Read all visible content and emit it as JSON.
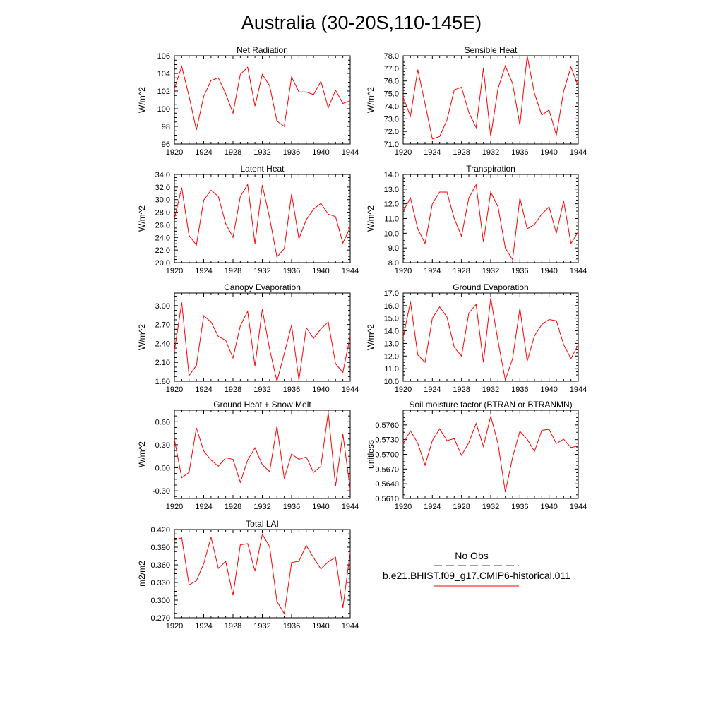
{
  "figure_title": "Australia (30-20S,110-145E)",
  "legend": {
    "obs_label": "No Obs",
    "obs_color": "#3b3b7a",
    "model_label": "b.e21.BHIST.f09_g17.CMIP6-historical.011",
    "model_color": "#ff0000"
  },
  "chart_data": [
    {
      "type": "line",
      "title": "Net Radiation",
      "ylabel": "W/m^2",
      "xlim": [
        1920,
        1944
      ],
      "ylim": [
        96,
        106
      ],
      "xticks": [
        1920,
        1924,
        1928,
        1932,
        1936,
        1940,
        1944
      ],
      "yticks": [
        96,
        98,
        100,
        102,
        104,
        106
      ],
      "ytick_labels": [
        "96",
        "98",
        "100",
        "102",
        "104",
        "106"
      ],
      "x": [
        1920,
        1921,
        1922,
        1923,
        1924,
        1925,
        1926,
        1927,
        1928,
        1929,
        1930,
        1931,
        1932,
        1933,
        1934,
        1935,
        1936,
        1937,
        1938,
        1939,
        1940,
        1941,
        1942,
        1943,
        1944
      ],
      "series": [
        {
          "values": [
            102.3,
            104.8,
            101.4,
            97.6,
            101.4,
            103.2,
            103.5,
            101.7,
            99.5,
            103.9,
            104.7,
            100.3,
            103.9,
            102.6,
            98.6,
            98.0,
            103.6,
            101.9,
            101.9,
            101.6,
            103.1,
            100.1,
            102.1,
            100.6,
            100.9
          ]
        }
      ]
    },
    {
      "type": "line",
      "title": "Sensible Heat",
      "ylabel": "W/m^2",
      "xlim": [
        1920,
        1944
      ],
      "ylim": [
        71.0,
        78.0
      ],
      "xticks": [
        1920,
        1924,
        1928,
        1932,
        1936,
        1940,
        1944
      ],
      "yticks": [
        71,
        72,
        73,
        74,
        75,
        76,
        77,
        78
      ],
      "ytick_labels": [
        "71.0",
        "72.0",
        "73.0",
        "74.0",
        "75.0",
        "76.0",
        "77.0",
        "78.0"
      ],
      "x": [
        1920,
        1921,
        1922,
        1923,
        1924,
        1925,
        1926,
        1927,
        1928,
        1929,
        1930,
        1931,
        1932,
        1933,
        1934,
        1935,
        1936,
        1937,
        1938,
        1939,
        1940,
        1941,
        1942,
        1943,
        1944
      ],
      "series": [
        {
          "values": [
            74.7,
            73.2,
            76.9,
            74.2,
            71.4,
            71.6,
            72.9,
            75.3,
            75.5,
            73.5,
            72.3,
            77.0,
            71.6,
            75.4,
            77.2,
            75.8,
            72.5,
            78.0,
            75.0,
            73.3,
            73.7,
            71.7,
            75.2,
            77.1,
            75.6
          ]
        }
      ]
    },
    {
      "type": "line",
      "title": "Latent Heat",
      "ylabel": "W/m^2",
      "xlim": [
        1920,
        1944
      ],
      "ylim": [
        20.0,
        34.0
      ],
      "xticks": [
        1920,
        1924,
        1928,
        1932,
        1936,
        1940,
        1944
      ],
      "yticks": [
        20,
        22,
        24,
        26,
        28,
        30,
        32,
        34
      ],
      "ytick_labels": [
        "20.0",
        "22.0",
        "24.0",
        "26.0",
        "28.0",
        "30.0",
        "32.0",
        "34.0"
      ],
      "x": [
        1920,
        1921,
        1922,
        1923,
        1924,
        1925,
        1926,
        1927,
        1928,
        1929,
        1930,
        1931,
        1932,
        1933,
        1934,
        1935,
        1936,
        1937,
        1938,
        1939,
        1940,
        1941,
        1942,
        1943,
        1944
      ],
      "series": [
        {
          "values": [
            27.0,
            31.9,
            24.3,
            22.8,
            29.9,
            31.5,
            30.5,
            26.2,
            24.0,
            30.5,
            32.4,
            23.0,
            32.3,
            27.1,
            20.9,
            22.2,
            30.9,
            23.8,
            26.8,
            28.5,
            29.4,
            27.7,
            27.3,
            23.1,
            25.6
          ]
        }
      ]
    },
    {
      "type": "line",
      "title": "Transpiration",
      "ylabel": "W/m^2",
      "xlim": [
        1920,
        1944
      ],
      "ylim": [
        8.0,
        14.0
      ],
      "xticks": [
        1920,
        1924,
        1928,
        1932,
        1936,
        1940,
        1944
      ],
      "yticks": [
        8,
        9,
        10,
        11,
        12,
        13,
        14
      ],
      "ytick_labels": [
        "8.0",
        "9.0",
        "10.0",
        "11.0",
        "12.0",
        "13.0",
        "14.0"
      ],
      "x": [
        1920,
        1921,
        1922,
        1923,
        1924,
        1925,
        1926,
        1927,
        1928,
        1929,
        1930,
        1931,
        1932,
        1933,
        1934,
        1935,
        1936,
        1937,
        1938,
        1939,
        1940,
        1941,
        1942,
        1943,
        1944
      ],
      "series": [
        {
          "values": [
            11.5,
            12.4,
            10.3,
            9.3,
            12.0,
            12.8,
            12.8,
            11.0,
            9.8,
            12.4,
            13.3,
            9.4,
            12.8,
            11.8,
            9.0,
            8.2,
            12.4,
            10.3,
            10.6,
            11.3,
            11.8,
            10.0,
            12.2,
            9.3,
            10.1
          ]
        }
      ]
    },
    {
      "type": "line",
      "title": "Canopy Evaporation",
      "ylabel": "W/m^2",
      "xlim": [
        1920,
        1944
      ],
      "ylim": [
        1.8,
        3.2
      ],
      "xticks": [
        1920,
        1924,
        1928,
        1932,
        1936,
        1940,
        1944
      ],
      "yticks": [
        1.8,
        2.1,
        2.4,
        2.7,
        3.0
      ],
      "ytick_labels": [
        "1.80",
        "2.10",
        "2.40",
        "2.70",
        "3.00"
      ],
      "x": [
        1920,
        1921,
        1922,
        1923,
        1924,
        1925,
        1926,
        1927,
        1928,
        1929,
        1930,
        1931,
        1932,
        1933,
        1934,
        1935,
        1936,
        1937,
        1938,
        1939,
        1940,
        1941,
        1942,
        1943,
        1944
      ],
      "series": [
        {
          "values": [
            2.28,
            3.05,
            1.89,
            2.05,
            2.84,
            2.74,
            2.51,
            2.45,
            2.17,
            2.68,
            2.91,
            2.04,
            2.94,
            2.31,
            1.8,
            2.24,
            2.69,
            1.82,
            2.65,
            2.48,
            2.63,
            2.74,
            2.08,
            1.94,
            2.52
          ]
        }
      ]
    },
    {
      "type": "line",
      "title": "Ground Evaporation",
      "ylabel": "W/m^2",
      "xlim": [
        1920,
        1944
      ],
      "ylim": [
        10.0,
        17.0
      ],
      "xticks": [
        1920,
        1924,
        1928,
        1932,
        1936,
        1940,
        1944
      ],
      "yticks": [
        10,
        11,
        12,
        13,
        14,
        15,
        16,
        17
      ],
      "ytick_labels": [
        "10.0",
        "11.0",
        "12.0",
        "13.0",
        "14.0",
        "15.0",
        "16.0",
        "17.0"
      ],
      "x": [
        1920,
        1921,
        1922,
        1923,
        1924,
        1925,
        1926,
        1927,
        1928,
        1929,
        1930,
        1931,
        1932,
        1933,
        1934,
        1935,
        1936,
        1937,
        1938,
        1939,
        1940,
        1941,
        1942,
        1943,
        1944
      ],
      "series": [
        {
          "values": [
            13.5,
            16.3,
            12.1,
            11.5,
            15.0,
            15.9,
            15.1,
            12.7,
            12.0,
            15.4,
            16.1,
            11.5,
            16.6,
            13.2,
            10.1,
            11.8,
            15.8,
            11.6,
            13.6,
            14.5,
            14.9,
            14.8,
            12.9,
            11.8,
            12.9
          ]
        }
      ]
    },
    {
      "type": "line",
      "title": "Ground Heat + Snow Melt",
      "ylabel": "W/m^2",
      "xlim": [
        1920,
        1944
      ],
      "ylim": [
        -0.4,
        0.75
      ],
      "xticks": [
        1920,
        1924,
        1928,
        1932,
        1936,
        1940,
        1944
      ],
      "yticks": [
        -0.3,
        0.0,
        0.3,
        0.6
      ],
      "ytick_labels": [
        "-0.30",
        "0.00",
        "0.30",
        "0.60"
      ],
      "x": [
        1920,
        1921,
        1922,
        1923,
        1924,
        1925,
        1926,
        1927,
        1928,
        1929,
        1930,
        1931,
        1932,
        1933,
        1934,
        1935,
        1936,
        1937,
        1938,
        1939,
        1940,
        1941,
        1942,
        1943,
        1944
      ],
      "series": [
        {
          "values": [
            0.37,
            -0.13,
            -0.06,
            0.52,
            0.22,
            0.1,
            0.02,
            0.13,
            0.11,
            -0.19,
            0.1,
            0.26,
            0.04,
            -0.05,
            0.54,
            -0.14,
            0.18,
            0.11,
            0.14,
            -0.06,
            0.02,
            0.72,
            -0.24,
            0.44,
            -0.28
          ]
        }
      ]
    },
    {
      "type": "line",
      "title": "Soil moisture factor (BTRAN or BTRANMN)",
      "ylabel": "unitless",
      "xlim": [
        1920,
        1944
      ],
      "ylim": [
        0.561,
        0.579
      ],
      "xticks": [
        1920,
        1924,
        1928,
        1932,
        1936,
        1940,
        1944
      ],
      "yticks": [
        0.561,
        0.564,
        0.567,
        0.57,
        0.573,
        0.576
      ],
      "ytick_labels": [
        "0.5610",
        "0.5640",
        "0.5670",
        "0.5700",
        "0.5730",
        "0.5760"
      ],
      "x": [
        1920,
        1921,
        1922,
        1923,
        1924,
        1925,
        1926,
        1927,
        1928,
        1929,
        1930,
        1931,
        1932,
        1933,
        1934,
        1935,
        1936,
        1937,
        1938,
        1939,
        1940,
        1941,
        1942,
        1943,
        1944
      ],
      "series": [
        {
          "values": [
            0.5722,
            0.5748,
            0.5723,
            0.5678,
            0.5728,
            0.5752,
            0.5728,
            0.5732,
            0.5698,
            0.5724,
            0.5763,
            0.5716,
            0.5778,
            0.5722,
            0.5623,
            0.5694,
            0.5747,
            0.5731,
            0.5706,
            0.5749,
            0.5751,
            0.5722,
            0.5731,
            0.5714,
            0.5717
          ]
        }
      ]
    },
    {
      "type": "line",
      "title": "Total LAI",
      "ylabel": "m2/m2",
      "xlim": [
        1920,
        1944
      ],
      "ylim": [
        0.27,
        0.42
      ],
      "xticks": [
        1920,
        1924,
        1928,
        1932,
        1936,
        1940,
        1944
      ],
      "yticks": [
        0.27,
        0.3,
        0.33,
        0.36,
        0.39,
        0.42
      ],
      "ytick_labels": [
        "0.270",
        "0.300",
        "0.330",
        "0.360",
        "0.390",
        "0.420"
      ],
      "x": [
        1920,
        1921,
        1922,
        1923,
        1924,
        1925,
        1926,
        1927,
        1928,
        1929,
        1930,
        1931,
        1932,
        1933,
        1934,
        1935,
        1936,
        1937,
        1938,
        1939,
        1940,
        1941,
        1942,
        1943,
        1944
      ],
      "series": [
        {
          "values": [
            0.402,
            0.406,
            0.326,
            0.333,
            0.362,
            0.407,
            0.354,
            0.366,
            0.308,
            0.394,
            0.396,
            0.349,
            0.412,
            0.391,
            0.298,
            0.277,
            0.364,
            0.366,
            0.393,
            0.372,
            0.353,
            0.365,
            0.373,
            0.287,
            0.381
          ]
        }
      ]
    }
  ]
}
